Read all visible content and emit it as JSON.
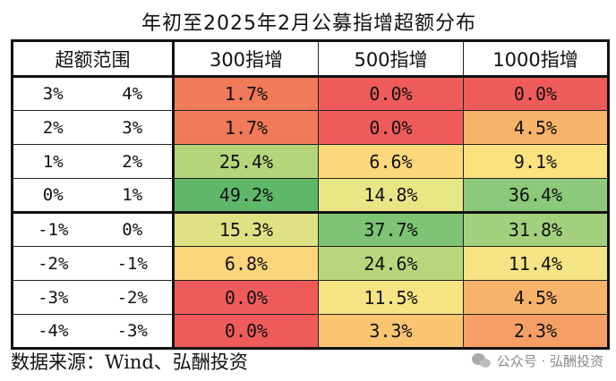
{
  "title": "年初至2025年2月公募指增超额分布",
  "table": {
    "headers": {
      "range": "超额范围",
      "col1": "300指增",
      "col2": "500指增",
      "col3": "1000指增"
    },
    "rows": [
      {
        "low": "3%",
        "high": "4%",
        "v1": "1.7%",
        "v2": "0.0%",
        "v3": "0.0%",
        "c1": "#f07a5a",
        "c2": "#ef5b5b",
        "c3": "#ef5b5b"
      },
      {
        "low": "2%",
        "high": "3%",
        "v1": "1.7%",
        "v2": "0.0%",
        "v3": "4.5%",
        "c1": "#f07a5a",
        "c2": "#ef5b5b",
        "c3": "#f7b36a"
      },
      {
        "low": "1%",
        "high": "2%",
        "v1": "25.4%",
        "v2": "6.6%",
        "v3": "9.1%",
        "c1": "#b5d57a",
        "c2": "#fbd87a",
        "c3": "#fbe27f"
      },
      {
        "low": "0%",
        "high": "1%",
        "v1": "49.2%",
        "v2": "14.8%",
        "v3": "36.4%",
        "c1": "#5fb86a",
        "c2": "#e8e684",
        "c3": "#8cc97a"
      },
      {
        "low": "-1%",
        "high": "0%",
        "v1": "15.3%",
        "v2": "37.7%",
        "v3": "31.8%",
        "c1": "#dfe284",
        "c2": "#7dc374",
        "c3": "#a3d07c"
      },
      {
        "low": "-2%",
        "high": "-1%",
        "v1": "6.8%",
        "v2": "24.6%",
        "v3": "11.4%",
        "c1": "#fcd57c",
        "c2": "#b9d67c",
        "c3": "#f4e483"
      },
      {
        "low": "-3%",
        "high": "-2%",
        "v1": "0.0%",
        "v2": "11.5%",
        "v3": "4.5%",
        "c1": "#ef5b5b",
        "c2": "#f6e483",
        "c3": "#f7b36a"
      },
      {
        "low": "-4%",
        "high": "-3%",
        "v1": "0.0%",
        "v2": "3.3%",
        "v3": "2.3%",
        "c1": "#ef5b5b",
        "c2": "#f9c573",
        "c3": "#f59f67"
      }
    ]
  },
  "footer": {
    "source_label": "数据来源：",
    "source_value": "Wind、弘酬投资"
  },
  "watermark": {
    "icon": "wechat-icon",
    "text": "公众号 · 弘酬投资"
  }
}
